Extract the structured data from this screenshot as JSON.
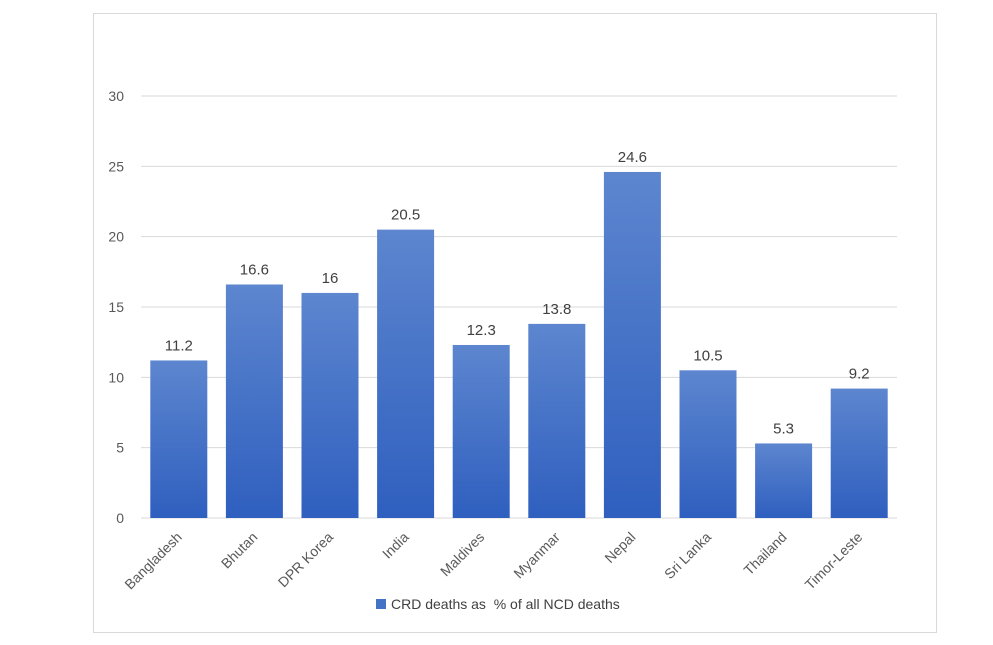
{
  "chart_data": {
    "type": "bar",
    "categories": [
      "Bangladesh",
      "Bhutan",
      "DPR Korea",
      "India",
      "Maldives",
      "Myanmar",
      "Nepal",
      "Sri Lanka",
      "Thailand",
      "Timor-Leste"
    ],
    "series": [
      {
        "name": "CRD deaths as  % of all NCD deaths",
        "values": [
          11.2,
          16.6,
          16,
          20.5,
          12.3,
          13.8,
          24.6,
          10.5,
          5.3,
          9.2
        ],
        "value_labels": [
          "11.2",
          "16.6",
          "16",
          "20.5",
          "12.3",
          "13.8",
          "24.6",
          "10.5",
          "5.3",
          "9.2"
        ],
        "color_top": "#5d86cf",
        "color_bottom": "#2f5fbf"
      }
    ],
    "ylim": [
      0,
      30
    ],
    "yticks": [
      0,
      5,
      10,
      15,
      20,
      25,
      30
    ],
    "grid": true,
    "legend_position": "bottom",
    "title": "",
    "xlabel": "",
    "ylabel": ""
  },
  "legend": {
    "label": "CRD deaths as  % of all NCD deaths",
    "swatch_color": "#4472c4"
  },
  "colors": {
    "gridline": "#d9d9d9",
    "axis_text": "#595959"
  }
}
